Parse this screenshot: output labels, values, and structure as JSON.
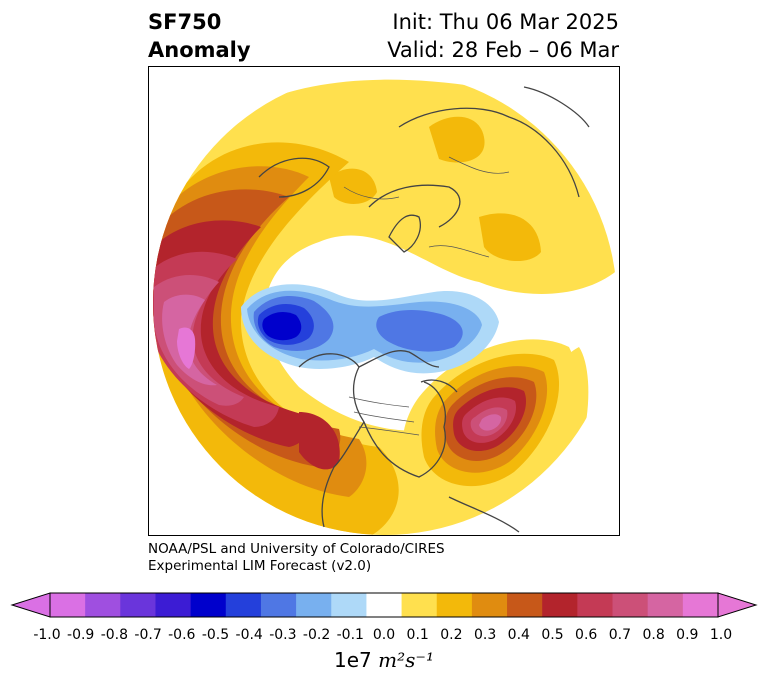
{
  "title": {
    "left_line1": "SF750",
    "left_line2": "Anomaly",
    "right_line1": "Init: Thu 06 Mar 2025",
    "right_line2": "Valid: 28 Feb – 06 Mar"
  },
  "credit": {
    "line1": "NOAA/PSL and University of Colorado/CIRES",
    "line2": "Experimental LIM Forecast (v2.0)"
  },
  "colorbar": {
    "levels": [
      "-1.0",
      "-0.9",
      "-0.8",
      "-0.7",
      "-0.6",
      "-0.5",
      "-0.4",
      "-0.3",
      "-0.2",
      "-0.1",
      "0.0",
      "0.1",
      "0.2",
      "0.3",
      "0.4",
      "0.5",
      "0.6",
      "0.7",
      "0.8",
      "0.9",
      "1.0"
    ],
    "colors": [
      "#da70e4",
      "#9f4fe0",
      "#6a35db",
      "#3c1cd4",
      "#0000cc",
      "#2440db",
      "#4f77e4",
      "#78b0ef",
      "#aed9f8",
      "#ffffff",
      "#ffe04e",
      "#f3b90a",
      "#e08c10",
      "#c75819",
      "#b3242c",
      "#c43a55",
      "#cc5078",
      "#d565a2",
      "#e677d6"
    ],
    "units_prefix": "1e7",
    "units_expr": "m²s⁻¹"
  },
  "map": {
    "projection": "north-polar-stereographic",
    "features": [
      {
        "name": "pacific-positive-anomaly",
        "sign": "positive",
        "max_level": "0.9"
      },
      {
        "name": "north-america-negative-anomaly",
        "sign": "negative",
        "min_level": "-0.6"
      },
      {
        "name": "atlantic-positive-anomaly",
        "sign": "positive",
        "max_level": "0.8"
      },
      {
        "name": "eurasia-positive-anomaly",
        "sign": "positive",
        "max_level": "0.3"
      }
    ]
  }
}
